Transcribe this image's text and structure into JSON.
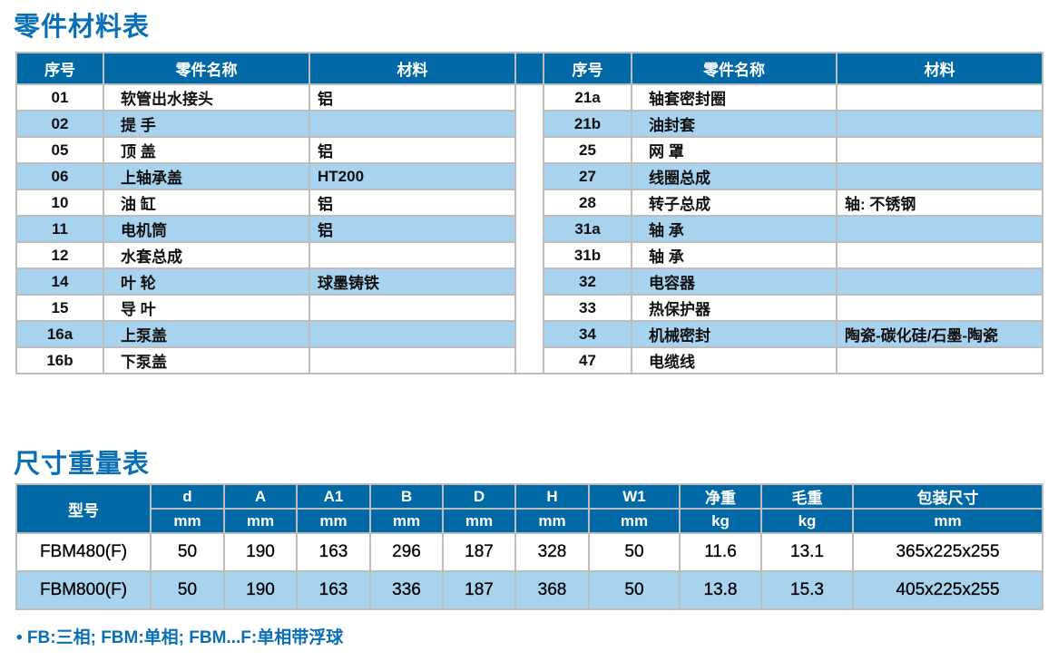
{
  "parts_title": "零件材料表",
  "dims_title": "尺寸重量表",
  "parts_headers": [
    "序号",
    "零件名称",
    "材料"
  ],
  "parts_left": [
    [
      "01",
      "软管出水接头",
      "铝"
    ],
    [
      "02",
      "提  手",
      ""
    ],
    [
      "05",
      "顶  盖",
      "铝"
    ],
    [
      "06",
      "上轴承盖",
      "HT200"
    ],
    [
      "10",
      "油  缸",
      "铝"
    ],
    [
      "11",
      "电机筒",
      "铝"
    ],
    [
      "12",
      "水套总成",
      ""
    ],
    [
      "14",
      "叶  轮",
      "球墨铸铁"
    ],
    [
      "15",
      "导  叶",
      ""
    ],
    [
      "16a",
      "上泵盖",
      ""
    ],
    [
      "16b",
      "下泵盖",
      ""
    ]
  ],
  "parts_right": [
    [
      "21a",
      "轴套密封圈",
      ""
    ],
    [
      "21b",
      "油封套",
      ""
    ],
    [
      "25",
      "网  罩",
      ""
    ],
    [
      "27",
      "线圈总成",
      ""
    ],
    [
      "28",
      "转子总成",
      "轴: 不锈钢"
    ],
    [
      "31a",
      "轴  承",
      ""
    ],
    [
      "31b",
      "轴  承",
      ""
    ],
    [
      "32",
      "电容器",
      ""
    ],
    [
      "33",
      "热保护器",
      ""
    ],
    [
      "34",
      "机械密封",
      "陶瓷-碳化硅/石墨-陶瓷"
    ],
    [
      "47",
      "电缆线",
      ""
    ]
  ],
  "dims_model_header": "型号",
  "dims_headers": [
    "d",
    "A",
    "A1",
    "B",
    "D",
    "H",
    "W1",
    "净重",
    "毛重",
    "包装尺寸"
  ],
  "dims_units": [
    "mm",
    "mm",
    "mm",
    "mm",
    "mm",
    "mm",
    "mm",
    "kg",
    "kg",
    "mm"
  ],
  "dims_rows": [
    [
      "FBM480(F)",
      "50",
      "190",
      "163",
      "296",
      "187",
      "328",
      "50",
      "11.6",
      "13.1",
      "365x225x255"
    ],
    [
      "FBM800(F)",
      "50",
      "190",
      "163",
      "336",
      "187",
      "368",
      "50",
      "13.8",
      "15.3",
      "405x225x255"
    ]
  ],
  "footnote": "• FB:三相; FBM:单相; FBM...F:单相带浮球",
  "colors": {
    "header_bg": "#0069a6",
    "alt_row": "#a8d3ee",
    "title": "#0a6fb4"
  }
}
